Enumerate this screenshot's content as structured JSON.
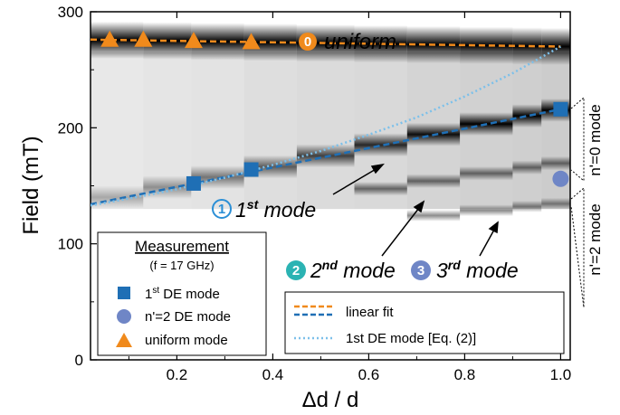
{
  "chart_data": {
    "type": "scatter",
    "xlabel": "Δd / d",
    "ylabel": "Field (mT)",
    "xlim": [
      0.02,
      1.02
    ],
    "ylim": [
      0,
      300
    ],
    "x_ticks": [
      0.2,
      0.4,
      0.6,
      0.8,
      1.0
    ],
    "y_ticks": [
      0,
      100,
      200,
      300
    ],
    "x_tick_labels": [
      "0.2",
      "0.4",
      "0.6",
      "0.8",
      "1.0"
    ],
    "y_tick_labels": [
      "0",
      "100",
      "200",
      "300"
    ],
    "grid": false,
    "background": "grayscale intensity map of measured absorption",
    "series": [
      {
        "name": "1st DE mode",
        "marker": "square",
        "color": "#1f6fb5",
        "x": [
          0.235,
          0.355,
          1.0
        ],
        "y": [
          152,
          164,
          216
        ]
      },
      {
        "name": "n'=2 DE mode",
        "marker": "circle",
        "color": "#6f86c6",
        "x": [
          1.0
        ],
        "y": [
          156
        ]
      },
      {
        "name": "uniform mode",
        "marker": "triangle",
        "color": "#f08a1c",
        "x": [
          0.06,
          0.13,
          0.235,
          0.355
        ],
        "y": [
          276,
          276,
          275,
          274
        ]
      },
      {
        "name": "linear fit",
        "style": "dashed",
        "color": "#f08a1c",
        "x": [
          0.02,
          1.0
        ],
        "y": [
          276,
          270
        ]
      },
      {
        "name": "linear fit",
        "style": "dashed",
        "color": "#1f6fb5",
        "x": [
          0.02,
          1.0
        ],
        "y": [
          134,
          216
        ]
      },
      {
        "name": "1st DE mode [Eq. (2)]",
        "style": "dotted",
        "color": "#7cc0ea",
        "x": [
          0.02,
          0.1,
          0.2,
          0.3,
          0.4,
          0.5,
          0.6,
          0.7,
          0.8,
          0.9,
          1.0
        ],
        "y": [
          133,
          139,
          147,
          157,
          168,
          180,
          194,
          209,
          227,
          247,
          270
        ]
      }
    ],
    "annotations": [
      {
        "num": "⓪",
        "text": "uniform",
        "x": 0.33,
        "y": 275
      },
      {
        "num": "①",
        "text": "1",
        "sup": "st",
        "rest": " mode",
        "x": 0.22,
        "y": 128
      },
      {
        "num": "②",
        "text": "2",
        "sup": "nd",
        "rest": " mode",
        "x": 0.37,
        "y": 75
      },
      {
        "num": "③",
        "text": "3",
        "sup": "rd",
        "rest": " mode",
        "x": 0.7,
        "y": 75
      }
    ],
    "side_labels": [
      "n'=0 mode",
      "n'=2 mode"
    ]
  },
  "legend_measurement": {
    "title": "Measurement",
    "subtitle": "(f = 17 GHz)",
    "items": [
      {
        "label_main": "1",
        "label_sup": "st",
        "label_rest": " DE mode"
      },
      {
        "label_main": "n'=2 DE mode",
        "label_sup": "",
        "label_rest": ""
      },
      {
        "label_main": "uniform mode",
        "label_sup": "",
        "label_rest": ""
      }
    ]
  },
  "legend_fit": {
    "items": [
      "linear fit",
      "1st DE mode [Eq. (2)]"
    ]
  },
  "colors": {
    "orange": "#f08a1c",
    "blue": "#1f6fb5",
    "lightblue": "#7cc0ea",
    "circle": "#6f86c6",
    "teal": "#2bb3b3"
  }
}
